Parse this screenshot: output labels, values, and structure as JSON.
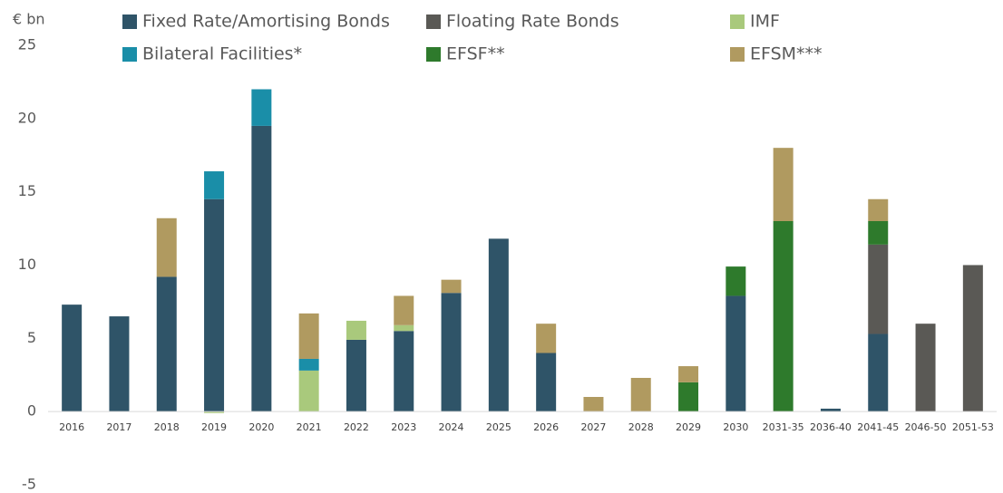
{
  "chart_data": {
    "type": "stacked_bar",
    "y_unit_label": "€ bn",
    "categories": [
      "2016",
      "2017",
      "2018",
      "2019",
      "2020",
      "2021",
      "2022",
      "2023",
      "2024",
      "2025",
      "2026",
      "2027",
      "2028",
      "2029",
      "2030",
      "2031-35",
      "2036-40",
      "2041-45",
      "2046-50",
      "2051-53"
    ],
    "series": [
      {
        "name": "Fixed Rate/Amortising  Bonds",
        "color": "#2f5468",
        "values": [
          7.3,
          6.5,
          9.2,
          14.5,
          19.5,
          0,
          4.9,
          5.5,
          8.1,
          11.8,
          4.0,
          0,
          0,
          0,
          7.9,
          0,
          0.2,
          5.3,
          0,
          0
        ]
      },
      {
        "name": "Floating Rate Bonds",
        "color": "#5a5955",
        "values": [
          0,
          0,
          0,
          0,
          0,
          0,
          0,
          0,
          0,
          0,
          0,
          0,
          0,
          0,
          0,
          0,
          0,
          6.1,
          6.0,
          10.0
        ]
      },
      {
        "name": "IMF",
        "color": "#a9c97c",
        "values": [
          0,
          0,
          0,
          -0.1,
          0,
          2.8,
          1.3,
          0.4,
          0,
          0,
          0,
          0,
          0,
          0,
          0,
          0,
          0,
          0,
          0,
          0
        ]
      },
      {
        "name": "Bilateral Facilities*",
        "color": "#1a8ea8",
        "values": [
          0,
          0,
          0,
          1.9,
          2.5,
          0.8,
          0,
          0,
          0,
          0,
          0,
          0,
          0,
          0,
          0,
          0,
          0,
          0,
          0,
          0
        ]
      },
      {
        "name": "EFSF**",
        "color": "#2e7a2c",
        "values": [
          0,
          0,
          0,
          0,
          0,
          0,
          0,
          0,
          0,
          0,
          0,
          0,
          0,
          2.0,
          2.0,
          13.0,
          0,
          1.6,
          0,
          0
        ]
      },
      {
        "name": "EFSM***",
        "color": "#b09a60",
        "values": [
          0,
          0,
          4.0,
          0,
          0,
          3.1,
          0,
          2.0,
          0.9,
          0,
          2.0,
          1.0,
          2.3,
          1.1,
          0,
          5.0,
          0,
          1.5,
          0,
          0
        ]
      }
    ],
    "ylim": [
      -5,
      25
    ],
    "yticks": [
      -5,
      0,
      5,
      10,
      15,
      20,
      25
    ],
    "grid": false
  }
}
